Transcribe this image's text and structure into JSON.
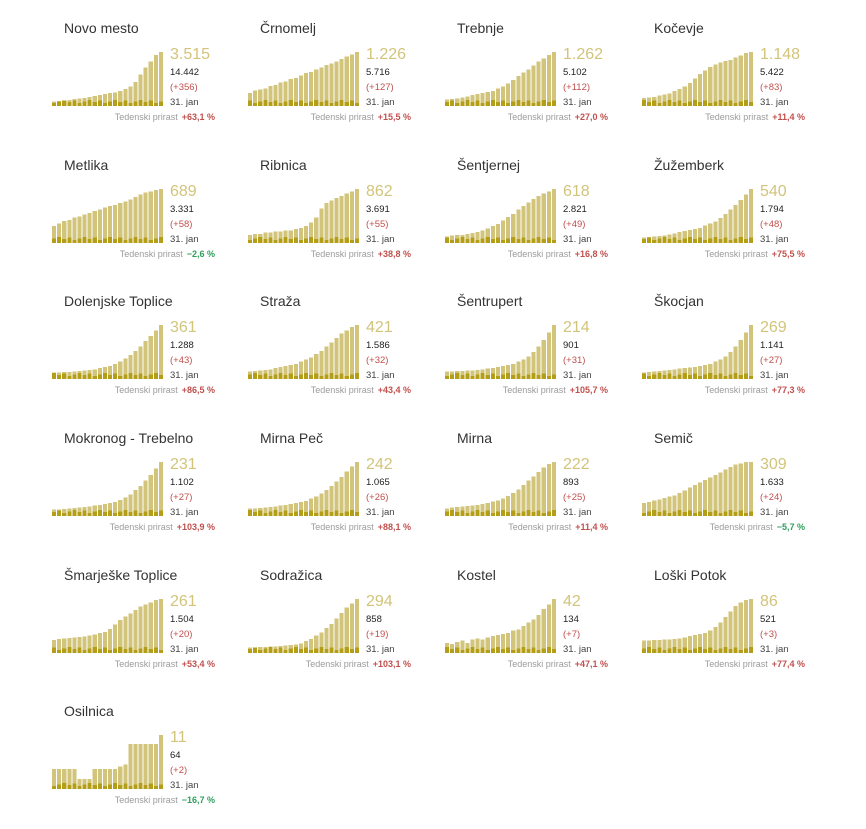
{
  "chart_data": {
    "type": "bar",
    "colors": {
      "total_bar": "#d2c47a",
      "new_bar": "#b59e17",
      "positive_growth": "#c0504d",
      "negative_growth": "#2e9e5b"
    },
    "growth_label": "Tedenski prirast",
    "charts": [
      {
        "title": "Novo mesto",
        "active": "3.515",
        "total": "14.442",
        "new": "(+356)",
        "date": "31. jan",
        "growth": "+63,1 %",
        "growth_sign": "pos",
        "values": [
          8,
          9,
          10,
          11,
          12,
          13,
          14,
          16,
          18,
          19,
          21,
          23,
          24,
          26,
          30,
          34,
          42,
          55,
          68,
          78,
          90,
          95
        ]
      },
      {
        "title": "Črnomelj",
        "active": "1.226",
        "total": "5.716",
        "new": "(+127)",
        "date": "31. jan",
        "growth": "+15,5 %",
        "growth_sign": "pos",
        "values": [
          22,
          26,
          28,
          30,
          34,
          36,
          40,
          42,
          46,
          48,
          52,
          56,
          58,
          62,
          66,
          70,
          72,
          76,
          80,
          84,
          88,
          92
        ]
      },
      {
        "title": "Trebnje",
        "active": "1.262",
        "total": "5.102",
        "new": "(+112)",
        "date": "31. jan",
        "growth": "+27,0 %",
        "growth_sign": "pos",
        "values": [
          12,
          13,
          14,
          16,
          18,
          20,
          22,
          24,
          26,
          28,
          32,
          36,
          42,
          48,
          56,
          62,
          68,
          75,
          82,
          88,
          94,
          100
        ]
      },
      {
        "title": "Kočevje",
        "active": "1.148",
        "total": "5.422",
        "new": "(+83)",
        "date": "31. jan",
        "growth": "+11,4 %",
        "growth_sign": "pos",
        "values": [
          14,
          15,
          16,
          18,
          20,
          22,
          26,
          30,
          34,
          40,
          48,
          56,
          62,
          68,
          72,
          76,
          78,
          80,
          84,
          88,
          92,
          94
        ]
      },
      {
        "title": "Metlika",
        "active": "689",
        "total": "3.331",
        "new": "(+58)",
        "date": "31. jan",
        "growth": "−2,6 %",
        "growth_sign": "neg",
        "values": [
          30,
          34,
          38,
          40,
          44,
          46,
          50,
          52,
          56,
          58,
          62,
          64,
          66,
          70,
          72,
          76,
          80,
          84,
          88,
          90,
          92,
          94
        ]
      },
      {
        "title": "Ribnica",
        "active": "862",
        "total": "3.691",
        "new": "(+55)",
        "date": "31. jan",
        "growth": "+38,8 %",
        "growth_sign": "pos",
        "values": [
          14,
          16,
          16,
          18,
          18,
          20,
          20,
          22,
          22,
          24,
          26,
          30,
          36,
          44,
          60,
          70,
          74,
          78,
          82,
          86,
          90,
          94
        ]
      },
      {
        "title": "Šentjernej",
        "active": "618",
        "total": "2.821",
        "new": "(+49)",
        "date": "31. jan",
        "growth": "+16,8 %",
        "growth_sign": "pos",
        "values": [
          12,
          13,
          14,
          14,
          16,
          18,
          20,
          22,
          26,
          30,
          34,
          40,
          46,
          52,
          60,
          66,
          72,
          78,
          84,
          88,
          92,
          96
        ]
      },
      {
        "title": "Žužemberk",
        "active": "540",
        "total": "1.794",
        "new": "(+48)",
        "date": "31. jan",
        "growth": "+75,5 %",
        "growth_sign": "pos",
        "values": [
          10,
          11,
          12,
          13,
          14,
          16,
          18,
          20,
          22,
          24,
          26,
          28,
          32,
          36,
          40,
          46,
          54,
          62,
          70,
          80,
          90,
          100
        ]
      },
      {
        "title": "Dolenjske Toplice",
        "active": "361",
        "total": "1.288",
        "new": "(+43)",
        "date": "31. jan",
        "growth": "+86,5 %",
        "growth_sign": "pos",
        "values": [
          12,
          12,
          13,
          13,
          14,
          15,
          16,
          17,
          18,
          20,
          22,
          24,
          28,
          32,
          38,
          44,
          52,
          60,
          70,
          80,
          90,
          100
        ]
      },
      {
        "title": "Straža",
        "active": "421",
        "total": "1.586",
        "new": "(+32)",
        "date": "31. jan",
        "growth": "+43,4 %",
        "growth_sign": "pos",
        "values": [
          14,
          15,
          16,
          17,
          18,
          20,
          22,
          24,
          26,
          28,
          32,
          36,
          40,
          46,
          52,
          60,
          68,
          76,
          84,
          90,
          96,
          100
        ]
      },
      {
        "title": "Šentrupert",
        "active": "214",
        "total": "901",
        "new": "(+31)",
        "date": "31. jan",
        "growth": "+105,7 %",
        "growth_sign": "pos",
        "values": [
          14,
          14,
          15,
          15,
          16,
          16,
          17,
          18,
          19,
          20,
          22,
          24,
          26,
          28,
          32,
          36,
          42,
          50,
          60,
          72,
          86,
          100
        ]
      },
      {
        "title": "Škocjan",
        "active": "269",
        "total": "1.141",
        "new": "(+27)",
        "date": "31. jan",
        "growth": "+77,3 %",
        "growth_sign": "pos",
        "values": [
          12,
          13,
          14,
          15,
          16,
          17,
          18,
          19,
          20,
          21,
          22,
          24,
          26,
          28,
          32,
          36,
          42,
          50,
          60,
          72,
          86,
          100
        ]
      },
      {
        "title": "Mokronog - Trebelno",
        "active": "231",
        "total": "1.102",
        "new": "(+27)",
        "date": "31. jan",
        "growth": "+103,9 %",
        "growth_sign": "pos",
        "values": [
          12,
          12,
          13,
          14,
          15,
          16,
          17,
          18,
          19,
          20,
          22,
          24,
          26,
          30,
          34,
          40,
          48,
          56,
          66,
          76,
          88,
          100
        ]
      },
      {
        "title": "Mirna Peč",
        "active": "242",
        "total": "1.065",
        "new": "(+26)",
        "date": "31. jan",
        "growth": "+88,1 %",
        "growth_sign": "pos",
        "values": [
          14,
          14,
          15,
          16,
          17,
          18,
          19,
          20,
          22,
          24,
          26,
          28,
          32,
          36,
          42,
          48,
          56,
          64,
          72,
          82,
          92,
          100
        ]
      },
      {
        "title": "Mirna",
        "active": "222",
        "total": "893",
        "new": "(+25)",
        "date": "31. jan",
        "growth": "+11,4 %",
        "growth_sign": "pos",
        "values": [
          14,
          15,
          16,
          17,
          18,
          19,
          20,
          22,
          24,
          26,
          28,
          32,
          36,
          42,
          48,
          56,
          64,
          72,
          80,
          88,
          94,
          98
        ]
      },
      {
        "title": "Semič",
        "active": "309",
        "total": "1.633",
        "new": "(+24)",
        "date": "31. jan",
        "growth": "−5,7 %",
        "growth_sign": "neg",
        "values": [
          20,
          22,
          24,
          26,
          28,
          30,
          32,
          36,
          40,
          44,
          48,
          52,
          56,
          60,
          64,
          68,
          72,
          76,
          80,
          82,
          84,
          84
        ]
      },
      {
        "title": "Šmarješke Toplice",
        "active": "261",
        "total": "1.504",
        "new": "(+20)",
        "date": "31. jan",
        "growth": "+53,4 %",
        "growth_sign": "pos",
        "values": [
          24,
          25,
          26,
          27,
          28,
          29,
          30,
          32,
          34,
          36,
          38,
          44,
          52,
          60,
          66,
          72,
          78,
          84,
          88,
          92,
          96,
          98
        ]
      },
      {
        "title": "Sodražica",
        "active": "294",
        "total": "858",
        "new": "(+19)",
        "date": "31. jan",
        "growth": "+103,1 %",
        "growth_sign": "pos",
        "values": [
          10,
          10,
          11,
          11,
          12,
          12,
          13,
          14,
          15,
          16,
          18,
          22,
          26,
          32,
          38,
          46,
          54,
          64,
          74,
          84,
          92,
          100
        ]
      },
      {
        "title": "Kostel",
        "active": "42",
        "total": "134",
        "new": "(+7)",
        "date": "31. jan",
        "growth": "+47,1 %",
        "growth_sign": "pos",
        "values": [
          18,
          16,
          20,
          22,
          18,
          24,
          26,
          24,
          28,
          30,
          32,
          34,
          36,
          40,
          42,
          48,
          54,
          60,
          68,
          78,
          86,
          96
        ]
      },
      {
        "title": "Loški Potok",
        "active": "86",
        "total": "521",
        "new": "(+3)",
        "date": "31. jan",
        "growth": "+77,4 %",
        "growth_sign": "pos",
        "values": [
          22,
          22,
          23,
          23,
          24,
          24,
          25,
          26,
          28,
          30,
          32,
          34,
          36,
          40,
          46,
          54,
          64,
          74,
          84,
          90,
          94,
          96
        ]
      },
      {
        "title": "Osilnica",
        "active": "11",
        "total": "64",
        "new": "(+2)",
        "date": "31. jan",
        "growth": "−16,7 %",
        "growth_sign": "neg",
        "values": [
          36,
          36,
          36,
          36,
          36,
          18,
          18,
          18,
          36,
          36,
          36,
          36,
          36,
          40,
          44,
          80,
          80,
          80,
          80,
          80,
          80,
          96
        ]
      }
    ]
  }
}
